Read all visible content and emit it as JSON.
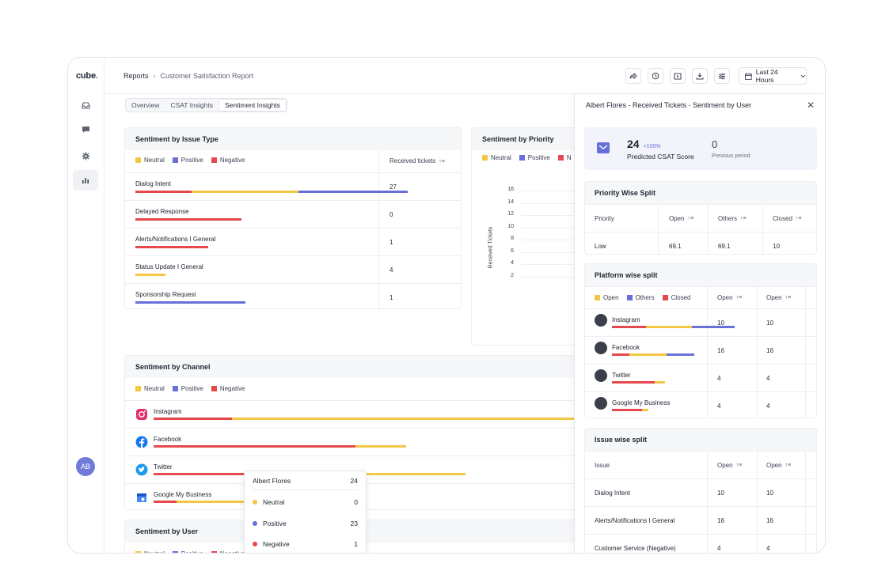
{
  "app": {
    "logo": "cube",
    "logo_dot": ".",
    "avatar": "AB"
  },
  "breadcrumb": {
    "root": "Reports",
    "sep": "›",
    "current": "Customer Satisfaction Report"
  },
  "toolbar": {
    "range_label": "Last 24 Hours"
  },
  "tabs": [
    {
      "label": "Overview"
    },
    {
      "label": "CSAT Insights"
    },
    {
      "label": "Sentiment Insights"
    }
  ],
  "legend": {
    "neutral": "Neutral",
    "positive": "Positive",
    "negative": "Negative"
  },
  "issue_card": {
    "title": "Sentiment by Issue Type",
    "col": "Received tickets",
    "rows": [
      {
        "label": "Dialog Intent",
        "count": "27",
        "negative": 0.17,
        "neutral": 0.32,
        "positive": 0.33
      },
      {
        "label": "Delayed Response",
        "count": "0",
        "negative": 0.32,
        "neutral": 0,
        "positive": 0
      },
      {
        "label": "Alerts/Notifications I General",
        "count": "1",
        "negative": 0.22,
        "neutral": 0,
        "positive": 0
      },
      {
        "label": "Status Update I General",
        "count": "4",
        "negative": 0,
        "neutral": 0.09,
        "positive": 0
      },
      {
        "label": "Sponsorship Request",
        "count": "1",
        "negative": 0,
        "neutral": 0,
        "positive": 0.33
      }
    ]
  },
  "priority_card": {
    "title": "Sentiment by Priority",
    "ylabel": "Received Tickets",
    "yticks": [
      "16",
      "14",
      "12",
      "10",
      "8",
      "6",
      "4",
      "2"
    ]
  },
  "channel_card": {
    "title": "Sentiment by Channel",
    "rows": [
      {
        "label": "Instagram",
        "icon": "instagram-icon",
        "negative": 0.17,
        "neutral": 0.76,
        "positive": 0.07
      },
      {
        "label": "Facebook",
        "icon": "facebook-icon",
        "negative": 0.44,
        "neutral": 0.11,
        "positive": 0
      },
      {
        "label": "Twitter",
        "icon": "twitter-icon",
        "negative": 0.44,
        "neutral": 0.24,
        "positive": 0
      },
      {
        "label": "Google My Business",
        "icon": "google-my-business-icon",
        "negative": 0.05,
        "neutral": 0.15,
        "positive": 0
      }
    ]
  },
  "user_card": {
    "title": "Sentiment by User"
  },
  "tooltip": {
    "name": "Albert Flores",
    "total": "24",
    "rows": [
      {
        "label": "Neutral",
        "value": "0",
        "color": "#f2c744"
      },
      {
        "label": "Positive",
        "value": "23",
        "color": "#6870d8"
      },
      {
        "label": "Negative",
        "value": "1",
        "color": "#e5484d"
      }
    ]
  },
  "panel": {
    "title": "Albert Flores - Received Tickets - Sentiment by User",
    "score": {
      "value": "24",
      "change": "+100%",
      "label": "Predicted CSAT Score",
      "prev_value": "0",
      "prev_label": "Previous period"
    },
    "priority": {
      "title": "Priority Wise Split",
      "headers": [
        "Priority",
        "Open",
        "Others",
        "Closed"
      ],
      "rows": [
        [
          "Low",
          "69.1",
          "69.1",
          "10"
        ]
      ]
    },
    "platform": {
      "title": "Platform wise split",
      "legend": [
        "Open",
        "Others",
        "Closed"
      ],
      "headers": [
        "Open",
        "Open"
      ],
      "rows": [
        {
          "label": "Instagram",
          "a": "10",
          "b": "10",
          "negative": 0.27,
          "neutral": 0.36,
          "positive": 0.34
        },
        {
          "label": "Facebook",
          "a": "16",
          "b": "16",
          "negative": 0.14,
          "neutral": 0.29,
          "positive": 0.22
        },
        {
          "label": "Twitter",
          "a": "4",
          "b": "4",
          "negative": 0.34,
          "neutral": 0.08,
          "positive": 0
        },
        {
          "label": "Google My Business",
          "a": "4",
          "b": "4",
          "negative": 0.24,
          "neutral": 0.05,
          "positive": 0
        }
      ]
    },
    "issue": {
      "title": "Issue wise split",
      "headers": [
        "Issue",
        "Open",
        "Open"
      ],
      "rows": [
        [
          "Dialog Intent",
          "10",
          "10"
        ],
        [
          "Alerts/Notifications I General",
          "16",
          "16"
        ],
        [
          "Customer Service (Negative)",
          "4",
          "4"
        ]
      ]
    }
  }
}
